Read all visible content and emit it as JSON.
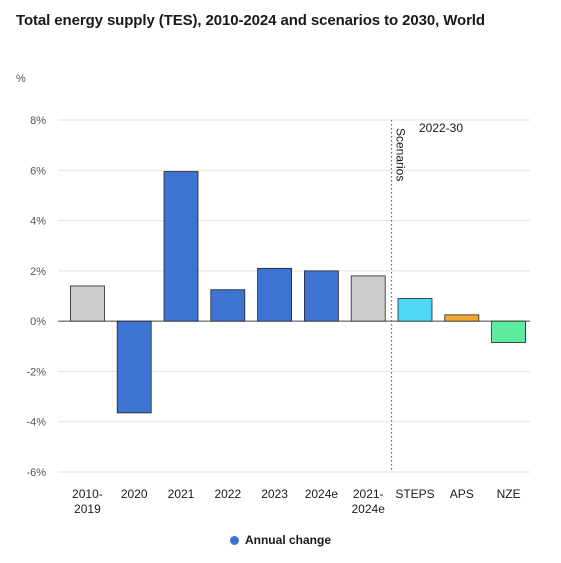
{
  "chart_data": {
    "type": "bar",
    "title": "Total energy supply (TES), 2010-2024 and scenarios to 2030, World",
    "ylabel": "%",
    "ylim": [
      -6,
      8
    ],
    "yticks": [
      -6,
      -4,
      -2,
      0,
      2,
      4,
      6,
      8
    ],
    "ytick_labels": [
      "-6%",
      "-4%",
      "-2%",
      "0%",
      "2%",
      "4%",
      "6%",
      "8%"
    ],
    "grid": true,
    "categories": [
      [
        "2010-",
        "2019"
      ],
      [
        "2020"
      ],
      [
        "2021"
      ],
      [
        "2022"
      ],
      [
        "2023"
      ],
      [
        "2024e"
      ],
      [
        "2021-",
        "2024e"
      ],
      [
        "STEPS"
      ],
      [
        "APS"
      ],
      [
        "NZE"
      ]
    ],
    "values": [
      1.4,
      -3.65,
      5.95,
      1.25,
      2.1,
      2.0,
      1.8,
      0.9,
      0.25,
      -0.85
    ],
    "bar_colors": [
      "#cccccc",
      "#3e74d1",
      "#3e74d1",
      "#3e74d1",
      "#3e74d1",
      "#3e74d1",
      "#cccccc",
      "#4ed6f5",
      "#f0a830",
      "#5deba0"
    ],
    "scenario_divider": {
      "after_category_index": 6,
      "label": "Scenarios",
      "period_label": "2022-30"
    },
    "legend": {
      "position": "bottom",
      "label": "Annual change",
      "color": "#3e74d1"
    }
  }
}
